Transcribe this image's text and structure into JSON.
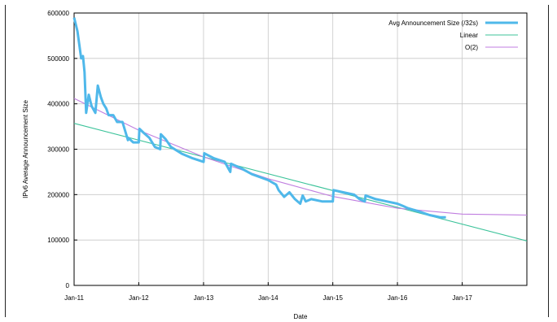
{
  "chart_data": {
    "type": "line",
    "title": "",
    "xlabel": "Date",
    "ylabel": "IPv6 Average Announcement Size",
    "xlim": [
      "2011-01-01",
      "2018-01-01"
    ],
    "ylim": [
      0,
      600000
    ],
    "grid": true,
    "legend_position": "top-right",
    "x_ticks": [
      "Jan-11",
      "Jan-12",
      "Jan-13",
      "Jan-14",
      "Jan-15",
      "Jan-16",
      "Jan-17"
    ],
    "y_ticks": [
      "0",
      "100000",
      "200000",
      "300000",
      "400000",
      "500000",
      "600000"
    ],
    "series": [
      {
        "name": "Avg Announcement Size (/32s)",
        "color": "#4fb8ea",
        "x": [
          "2011-01-01",
          "2011-01-20",
          "2011-02-10",
          "2011-02-20",
          "2011-03-01",
          "2011-03-10",
          "2011-03-25",
          "2011-04-10",
          "2011-05-01",
          "2011-05-15",
          "2011-06-01",
          "2011-06-15",
          "2011-07-01",
          "2011-07-15",
          "2011-08-10",
          "2011-09-01",
          "2011-10-01",
          "2011-11-01",
          "2011-11-03",
          "2011-12-01",
          "2012-01-01",
          "2012-01-05",
          "2012-02-01",
          "2012-03-01",
          "2012-04-01",
          "2012-05-01",
          "2012-05-05",
          "2012-06-01",
          "2012-07-01",
          "2012-09-01",
          "2012-11-01",
          "2013-01-01",
          "2013-01-05",
          "2013-03-01",
          "2013-05-01",
          "2013-06-01",
          "2013-06-05",
          "2013-08-01",
          "2013-10-01",
          "2014-01-01",
          "2014-02-15",
          "2014-03-01",
          "2014-04-01",
          "2014-05-01",
          "2014-06-01",
          "2014-07-01",
          "2014-07-15",
          "2014-08-01",
          "2014-09-01",
          "2014-11-01",
          "2015-01-01",
          "2015-01-05",
          "2015-03-01",
          "2015-05-01",
          "2015-06-01",
          "2015-07-01",
          "2015-07-05",
          "2015-09-01",
          "2015-11-01",
          "2016-01-01",
          "2016-02-01",
          "2016-03-01",
          "2016-05-01",
          "2016-07-01",
          "2016-09-01",
          "2016-10-01"
        ],
        "values": [
          590000,
          560000,
          500000,
          505000,
          470000,
          380000,
          420000,
          395000,
          380000,
          440000,
          415000,
          400000,
          390000,
          375000,
          375000,
          360000,
          360000,
          320000,
          325000,
          315000,
          315000,
          345000,
          335000,
          325000,
          305000,
          300000,
          333000,
          322000,
          305000,
          290000,
          280000,
          272000,
          291000,
          280000,
          272000,
          250000,
          268000,
          258000,
          245000,
          232000,
          222000,
          210000,
          195000,
          205000,
          190000,
          180000,
          198000,
          185000,
          190000,
          185000,
          185000,
          210000,
          205000,
          200000,
          190000,
          185000,
          198000,
          190000,
          185000,
          180000,
          175000,
          170000,
          163000,
          155000,
          150000,
          150000
        ]
      },
      {
        "name": "Linear",
        "color": "#3cc39a",
        "x": [
          "2011-01-01",
          "2018-01-01"
        ],
        "values": [
          357000,
          98000
        ]
      },
      {
        "name": "O(2)",
        "color": "#c07ee0",
        "x": [
          "2011-01-01",
          "2012-01-01",
          "2013-01-01",
          "2014-01-01",
          "2015-01-01",
          "2016-01-01",
          "2017-01-01",
          "2018-01-01"
        ],
        "values": [
          412000,
          342000,
          283000,
          235000,
          196000,
          170000,
          157000,
          155000
        ]
      }
    ]
  }
}
